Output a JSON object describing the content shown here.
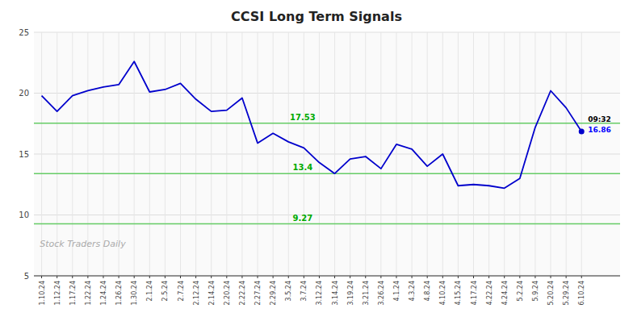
{
  "chart_data": {
    "type": "line",
    "title": "CCSI Long Term Signals",
    "categories": [
      "1.10.24",
      "1.12.24",
      "1.17.24",
      "1.22.24",
      "1.24.24",
      "1.26.24",
      "1.30.24",
      "2.1.24",
      "2.5.24",
      "2.7.24",
      "2.12.24",
      "2.14.24",
      "2.20.24",
      "2.22.24",
      "2.27.24",
      "2.29.24",
      "3.5.24",
      "3.7.24",
      "3.12.24",
      "3.14.24",
      "3.19.24",
      "3.21.24",
      "3.26.24",
      "4.1.24",
      "4.3.24",
      "4.8.24",
      "4.10.24",
      "4.15.24",
      "4.17.24",
      "4.22.24",
      "4.24.24",
      "5.2.24",
      "5.9.24",
      "5.20.24",
      "5.29.24",
      "6.10.24"
    ],
    "values": [
      19.8,
      18.5,
      19.8,
      20.2,
      20.5,
      20.7,
      22.6,
      20.1,
      20.3,
      20.8,
      19.5,
      18.5,
      18.6,
      19.6,
      15.9,
      16.7,
      16.0,
      15.5,
      14.3,
      13.4,
      14.6,
      14.8,
      13.8,
      15.8,
      15.4,
      14.0,
      15.0,
      12.4,
      12.5,
      12.4,
      12.2,
      13.0,
      17.2,
      20.2,
      18.8,
      16.86
    ],
    "color": "#0000cc",
    "ylim": [
      5,
      25
    ],
    "yticks": [
      5,
      10,
      15,
      20,
      25
    ],
    "grid": true,
    "reference_lines": [
      {
        "value": 17.53,
        "label": "17.53",
        "color": "#66cc66"
      },
      {
        "value": 13.4,
        "label": "13.4",
        "color": "#66cc66"
      },
      {
        "value": 9.27,
        "label": "9.27",
        "color": "#66cc66"
      }
    ],
    "annotations": [
      "09:32",
      "16.86"
    ],
    "watermark": "Stock Traders Daily"
  }
}
